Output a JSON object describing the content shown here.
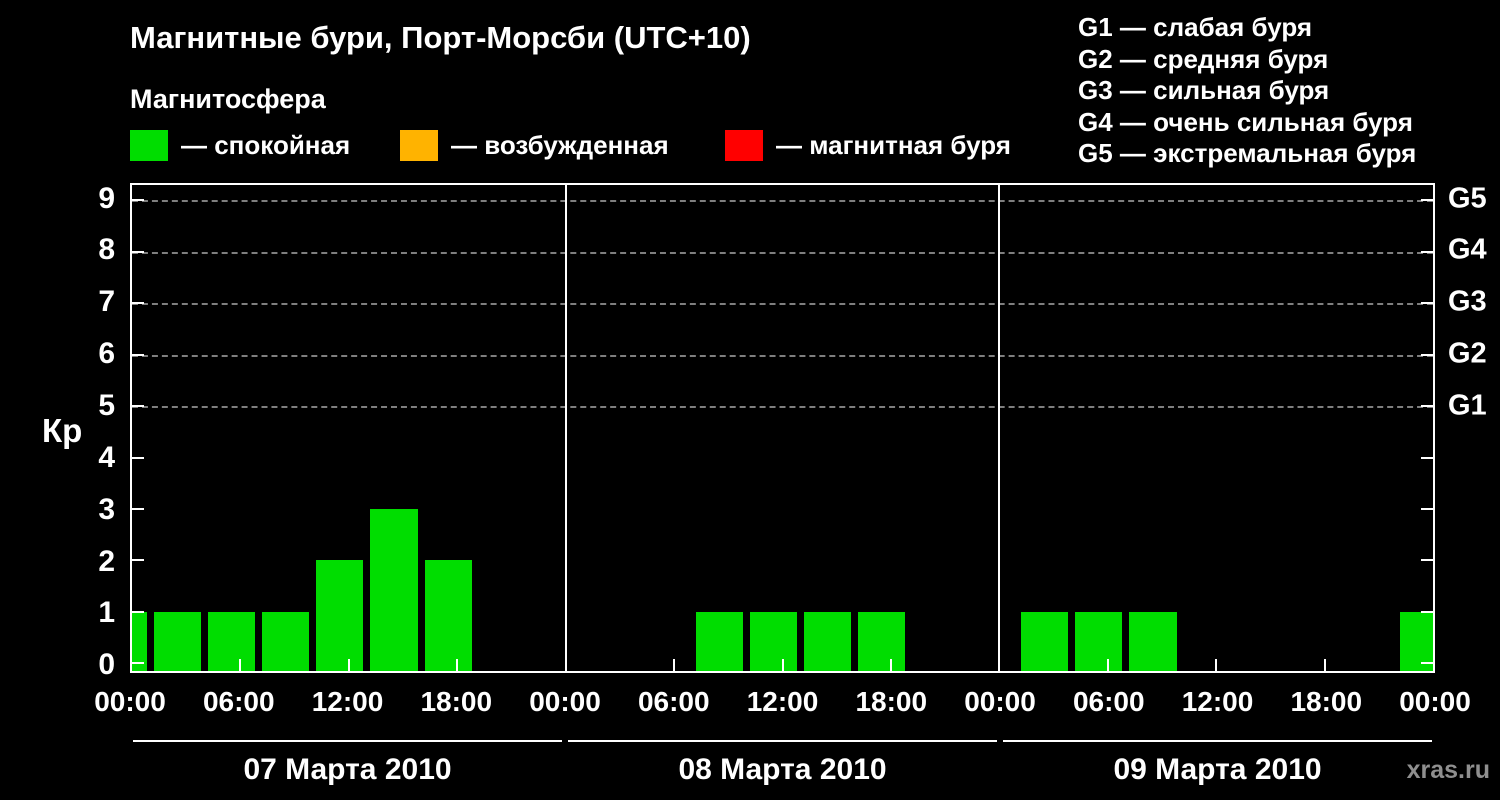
{
  "watermark": "xras.ru",
  "chart_data": {
    "type": "bar",
    "title": "Магнитные бури, Порт-Морсби (UTC+10)",
    "subtitle": "Магнитосфера",
    "ylabel": "Кр",
    "ylim": [
      -0.15,
      9.3
    ],
    "yticks": [
      0,
      1,
      2,
      3,
      4,
      5,
      6,
      7,
      8,
      9
    ],
    "grid_levels": [
      5,
      6,
      7,
      8,
      9
    ],
    "right_axis_labels": [
      {
        "value": 9,
        "label": "G5"
      },
      {
        "value": 8,
        "label": "G4"
      },
      {
        "value": 7,
        "label": "G3"
      },
      {
        "value": 6,
        "label": "G2"
      },
      {
        "value": 5,
        "label": "G1"
      }
    ],
    "legend": [
      {
        "label": "— спокойная",
        "color": "#00dd00"
      },
      {
        "label": "— возбужденная",
        "color": "#ffb300"
      },
      {
        "label": "— магнитная буря",
        "color": "#ff0000"
      }
    ],
    "storm_scale": [
      "G1 — слабая буря",
      "G2 — средняя буря",
      "G3 — сильная буря",
      "G4 — очень сильная буря",
      "G5 — экстремальная буря"
    ],
    "bar_color": "#00dd00",
    "x_tick_labels": [
      "00:00",
      "06:00",
      "12:00",
      "18:00"
    ],
    "closing_x_tick_label": "00:00",
    "slot_start_hours": [
      1,
      4,
      7,
      10,
      13,
      16,
      19,
      22
    ],
    "slot_span_hours": 3,
    "days": [
      {
        "date": "07 Марта 2010",
        "values": [
          1,
          1,
          1,
          2,
          3,
          2,
          0,
          0
        ],
        "leading_partial_value": 1
      },
      {
        "date": "08 Марта 2010",
        "values": [
          0,
          0,
          1,
          1,
          1,
          1,
          0,
          0
        ]
      },
      {
        "date": "09 Марта 2010",
        "values": [
          1,
          1,
          1,
          0,
          0,
          0,
          0,
          1
        ]
      }
    ]
  }
}
